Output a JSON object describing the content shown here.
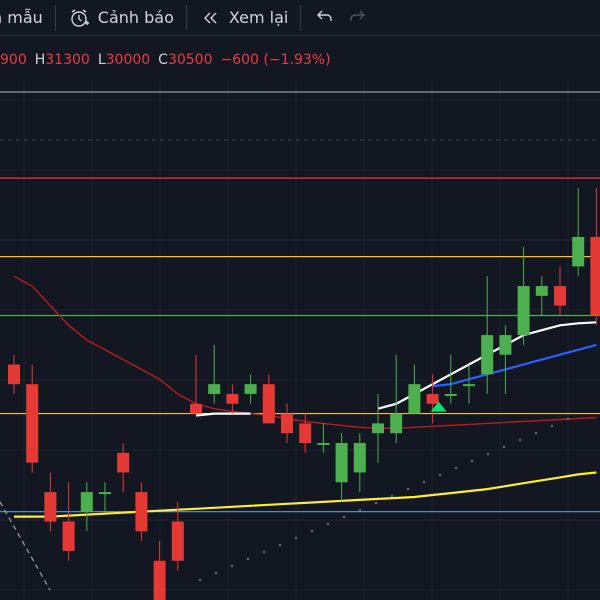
{
  "toolbar": {
    "template_label": "n mẫu",
    "alert_label": "Cảnh báo",
    "replay_label": "Xem lại"
  },
  "ohlc": {
    "open_value": "900",
    "high_key": "H",
    "high_value": "31300",
    "low_key": "L",
    "low_value": "30000",
    "close_key": "C",
    "close_value": "30500",
    "change": "−600 (−1.93%)"
  },
  "colors": {
    "background": "#131722",
    "up": "#4caf50",
    "down": "#e53935",
    "ma_white": "#ffffff",
    "ma_blue": "#2962ff",
    "ma_yellow": "#ffeb3b",
    "ma_red": "#b71c1c",
    "level_red": "#f23645",
    "level_yellow": "#fbc02d",
    "level_green": "#4caf50",
    "level_blue": "#5b9bd5"
  },
  "chart_data": {
    "type": "candlestick",
    "candles": [
      {
        "o": 31500,
        "h": 31600,
        "l": 31200,
        "c": 31300
      },
      {
        "o": 31300,
        "h": 31500,
        "l": 30400,
        "c": 30500
      },
      {
        "o": 30200,
        "h": 30400,
        "l": 29800,
        "c": 29900
      },
      {
        "o": 29900,
        "h": 30300,
        "l": 29500,
        "c": 29600
      },
      {
        "o": 30000,
        "h": 30300,
        "l": 29800,
        "c": 30200
      },
      {
        "o": 30200,
        "h": 30300,
        "l": 30000,
        "c": 30200
      },
      {
        "o": 30600,
        "h": 30700,
        "l": 30200,
        "c": 30400
      },
      {
        "o": 30200,
        "h": 30300,
        "l": 29700,
        "c": 29800
      },
      {
        "o": 29500,
        "h": 29700,
        "l": 29000,
        "c": 29100
      },
      {
        "o": 29900,
        "h": 30100,
        "l": 29400,
        "c": 29500
      },
      {
        "o": 31100,
        "h": 31600,
        "l": 31000,
        "c": 31000
      },
      {
        "o": 31200,
        "h": 31700,
        "l": 31100,
        "c": 31300
      },
      {
        "o": 31200,
        "h": 31300,
        "l": 31000,
        "c": 31100
      },
      {
        "o": 31200,
        "h": 31400,
        "l": 31100,
        "c": 31300
      },
      {
        "o": 31300,
        "h": 31400,
        "l": 30900,
        "c": 30900
      },
      {
        "o": 31000,
        "h": 31100,
        "l": 30700,
        "c": 30800
      },
      {
        "o": 30900,
        "h": 31000,
        "l": 30600,
        "c": 30700
      },
      {
        "o": 30700,
        "h": 30900,
        "l": 30600,
        "c": 30700
      },
      {
        "o": 30300,
        "h": 30800,
        "l": 30100,
        "c": 30700
      },
      {
        "o": 30400,
        "h": 30800,
        "l": 30200,
        "c": 30700
      },
      {
        "o": 30800,
        "h": 31200,
        "l": 30500,
        "c": 30900
      },
      {
        "o": 30800,
        "h": 31600,
        "l": 30700,
        "c": 31000
      },
      {
        "o": 31000,
        "h": 31500,
        "l": 31000,
        "c": 31300
      },
      {
        "o": 31200,
        "h": 31400,
        "l": 30900,
        "c": 31100
      },
      {
        "o": 31200,
        "h": 31600,
        "l": 31100,
        "c": 31200
      },
      {
        "o": 31300,
        "h": 31500,
        "l": 31100,
        "c": 31300
      },
      {
        "o": 31400,
        "h": 32400,
        "l": 31200,
        "c": 31800
      },
      {
        "o": 31600,
        "h": 31900,
        "l": 31200,
        "c": 31800
      },
      {
        "o": 31800,
        "h": 32700,
        "l": 31700,
        "c": 32300
      },
      {
        "o": 32200,
        "h": 32400,
        "l": 32000,
        "c": 32300
      },
      {
        "o": 32300,
        "h": 32500,
        "l": 32000,
        "c": 32100
      },
      {
        "o": 32500,
        "h": 33300,
        "l": 32400,
        "c": 32800
      },
      {
        "o": 32800,
        "h": 33300,
        "l": 31900,
        "c": 32000
      }
    ],
    "levels": [
      {
        "value": 33400,
        "color": "#f23645"
      },
      {
        "value": 32600,
        "color": "#fbc02d"
      },
      {
        "value": 32000,
        "color": "#4caf50"
      },
      {
        "value": 31000,
        "color": "#fbc02d"
      },
      {
        "value": 30000,
        "color": "#5b9bd5"
      }
    ],
    "ma_white": [
      null,
      null,
      null,
      null,
      null,
      null,
      null,
      null,
      null,
      null,
      30980,
      31000,
      31000,
      31000,
      null,
      null,
      null,
      null,
      null,
      null,
      31050,
      31100,
      31200,
      31300,
      31400,
      31500,
      31600,
      31700,
      31800,
      31850,
      31900,
      31920,
      31930
    ],
    "ma_blue": [
      null,
      null,
      null,
      null,
      null,
      null,
      null,
      null,
      null,
      null,
      null,
      null,
      null,
      null,
      null,
      null,
      null,
      null,
      null,
      null,
      null,
      null,
      null,
      31280,
      31300,
      31350,
      31400,
      31450,
      31500,
      31550,
      31600,
      31650,
      31700
    ],
    "ma_yellow": [
      29950,
      29950,
      29950,
      29960,
      29970,
      29980,
      29990,
      30000,
      30010,
      30020,
      30030,
      30040,
      30050,
      30060,
      30070,
      30080,
      30090,
      30100,
      30110,
      30120,
      30130,
      30140,
      30150,
      30170,
      30190,
      30210,
      30230,
      30260,
      30290,
      30320,
      30350,
      30380,
      30400
    ],
    "ma_red": [
      32400,
      32300,
      32100,
      31900,
      31750,
      31650,
      31550,
      31450,
      31350,
      31200,
      31100,
      31050,
      31020,
      31000,
      30980,
      30950,
      30920,
      30900,
      30880,
      30860,
      30850,
      30850,
      30860,
      30870,
      30880,
      30890,
      30900,
      30910,
      30920,
      30930,
      30940,
      30950,
      30960
    ],
    "signal_up_index": 23,
    "ylim": [
      29100,
      34400
    ]
  }
}
